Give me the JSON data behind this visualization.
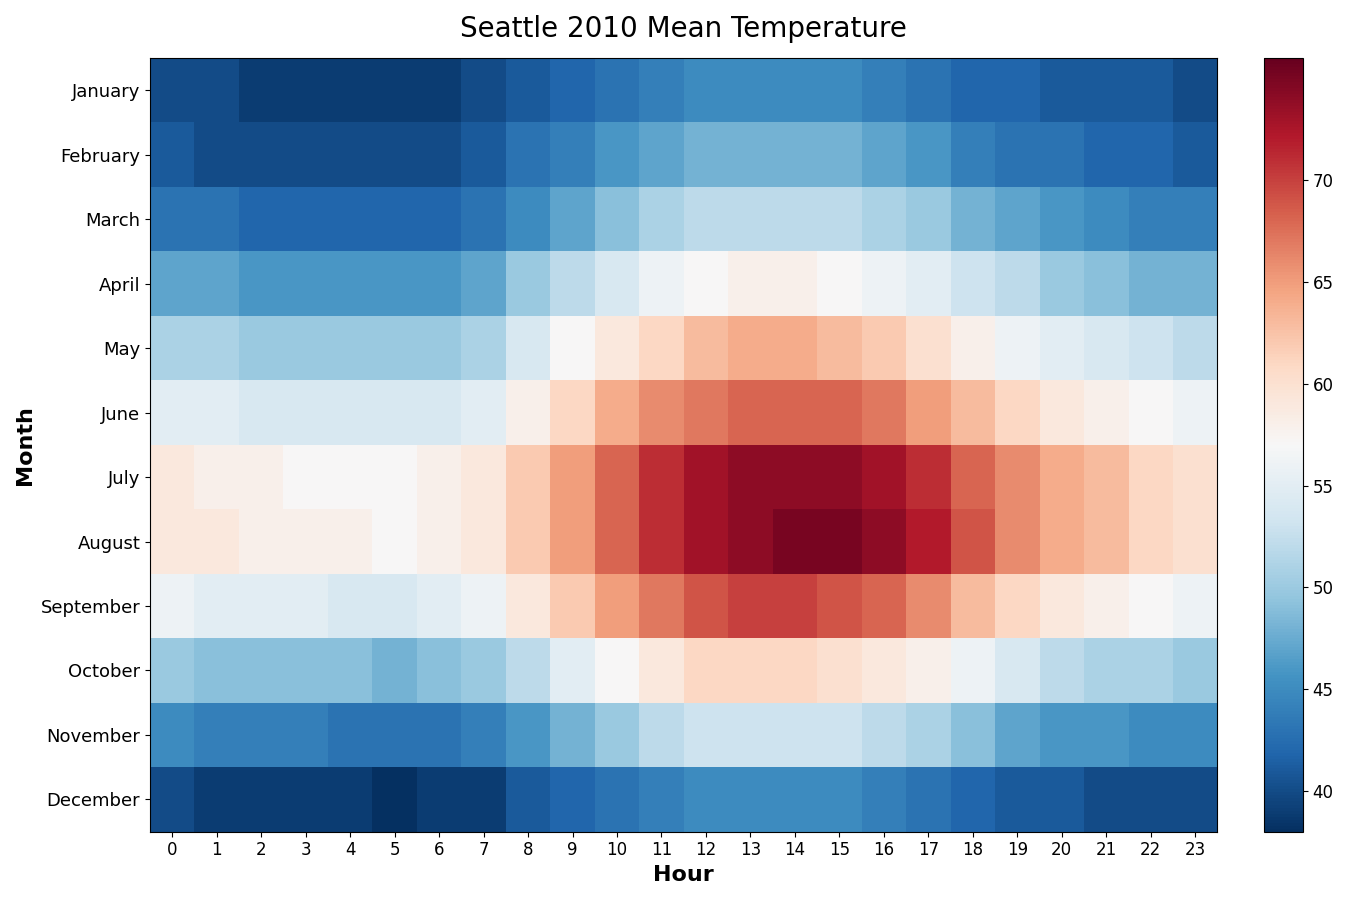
{
  "title": "Seattle 2010 Mean Temperature",
  "xlabel": "Hour",
  "ylabel": "Month",
  "months": [
    "January",
    "February",
    "March",
    "April",
    "May",
    "June",
    "July",
    "August",
    "September",
    "October",
    "November",
    "December"
  ],
  "hours": [
    0,
    1,
    2,
    3,
    4,
    5,
    6,
    7,
    8,
    9,
    10,
    11,
    12,
    13,
    14,
    15,
    16,
    17,
    18,
    19,
    20,
    21,
    22,
    23
  ],
  "vmin": 38,
  "vmax": 76,
  "cmap": "RdBu_r",
  "temperatures": [
    [
      40,
      40,
      39,
      39,
      39,
      39,
      39,
      40,
      41,
      42,
      43,
      44,
      45,
      45,
      45,
      45,
      44,
      43,
      42,
      42,
      41,
      41,
      41,
      40
    ],
    [
      41,
      40,
      40,
      40,
      40,
      40,
      40,
      41,
      43,
      44,
      46,
      47,
      48,
      48,
      48,
      48,
      47,
      46,
      44,
      43,
      43,
      42,
      42,
      41
    ],
    [
      43,
      43,
      42,
      42,
      42,
      42,
      42,
      43,
      45,
      47,
      49,
      51,
      52,
      52,
      52,
      52,
      51,
      50,
      48,
      47,
      46,
      45,
      44,
      44
    ],
    [
      47,
      47,
      46,
      46,
      46,
      46,
      46,
      47,
      50,
      52,
      54,
      56,
      57,
      58,
      58,
      57,
      56,
      55,
      53,
      52,
      50,
      49,
      48,
      48
    ],
    [
      51,
      51,
      50,
      50,
      50,
      50,
      50,
      51,
      54,
      57,
      59,
      61,
      63,
      64,
      64,
      63,
      62,
      60,
      58,
      56,
      55,
      54,
      53,
      52
    ],
    [
      55,
      55,
      54,
      54,
      54,
      54,
      54,
      55,
      58,
      61,
      64,
      66,
      67,
      68,
      68,
      68,
      67,
      65,
      63,
      61,
      59,
      58,
      57,
      56
    ],
    [
      59,
      58,
      58,
      57,
      57,
      57,
      58,
      59,
      62,
      65,
      68,
      71,
      73,
      74,
      74,
      74,
      73,
      71,
      68,
      66,
      64,
      63,
      61,
      60
    ],
    [
      59,
      59,
      58,
      58,
      58,
      57,
      58,
      59,
      62,
      65,
      68,
      71,
      73,
      74,
      75,
      75,
      74,
      72,
      69,
      66,
      64,
      63,
      61,
      60
    ],
    [
      56,
      55,
      55,
      55,
      54,
      54,
      55,
      56,
      59,
      62,
      65,
      67,
      69,
      70,
      70,
      69,
      68,
      66,
      63,
      61,
      59,
      58,
      57,
      56
    ],
    [
      50,
      49,
      49,
      49,
      49,
      48,
      49,
      50,
      52,
      55,
      57,
      59,
      61,
      61,
      61,
      60,
      59,
      58,
      56,
      54,
      52,
      51,
      51,
      50
    ],
    [
      45,
      44,
      44,
      44,
      43,
      43,
      43,
      44,
      46,
      48,
      50,
      52,
      53,
      53,
      53,
      53,
      52,
      51,
      49,
      47,
      46,
      46,
      45,
      45
    ],
    [
      40,
      39,
      39,
      39,
      39,
      38,
      39,
      39,
      41,
      42,
      43,
      44,
      45,
      45,
      45,
      45,
      44,
      43,
      42,
      41,
      41,
      40,
      40,
      40
    ]
  ],
  "colorbar_ticks": [
    40,
    45,
    50,
    55,
    60,
    65,
    70
  ],
  "figsize": [
    13.5,
    9.0
  ],
  "dpi": 100
}
